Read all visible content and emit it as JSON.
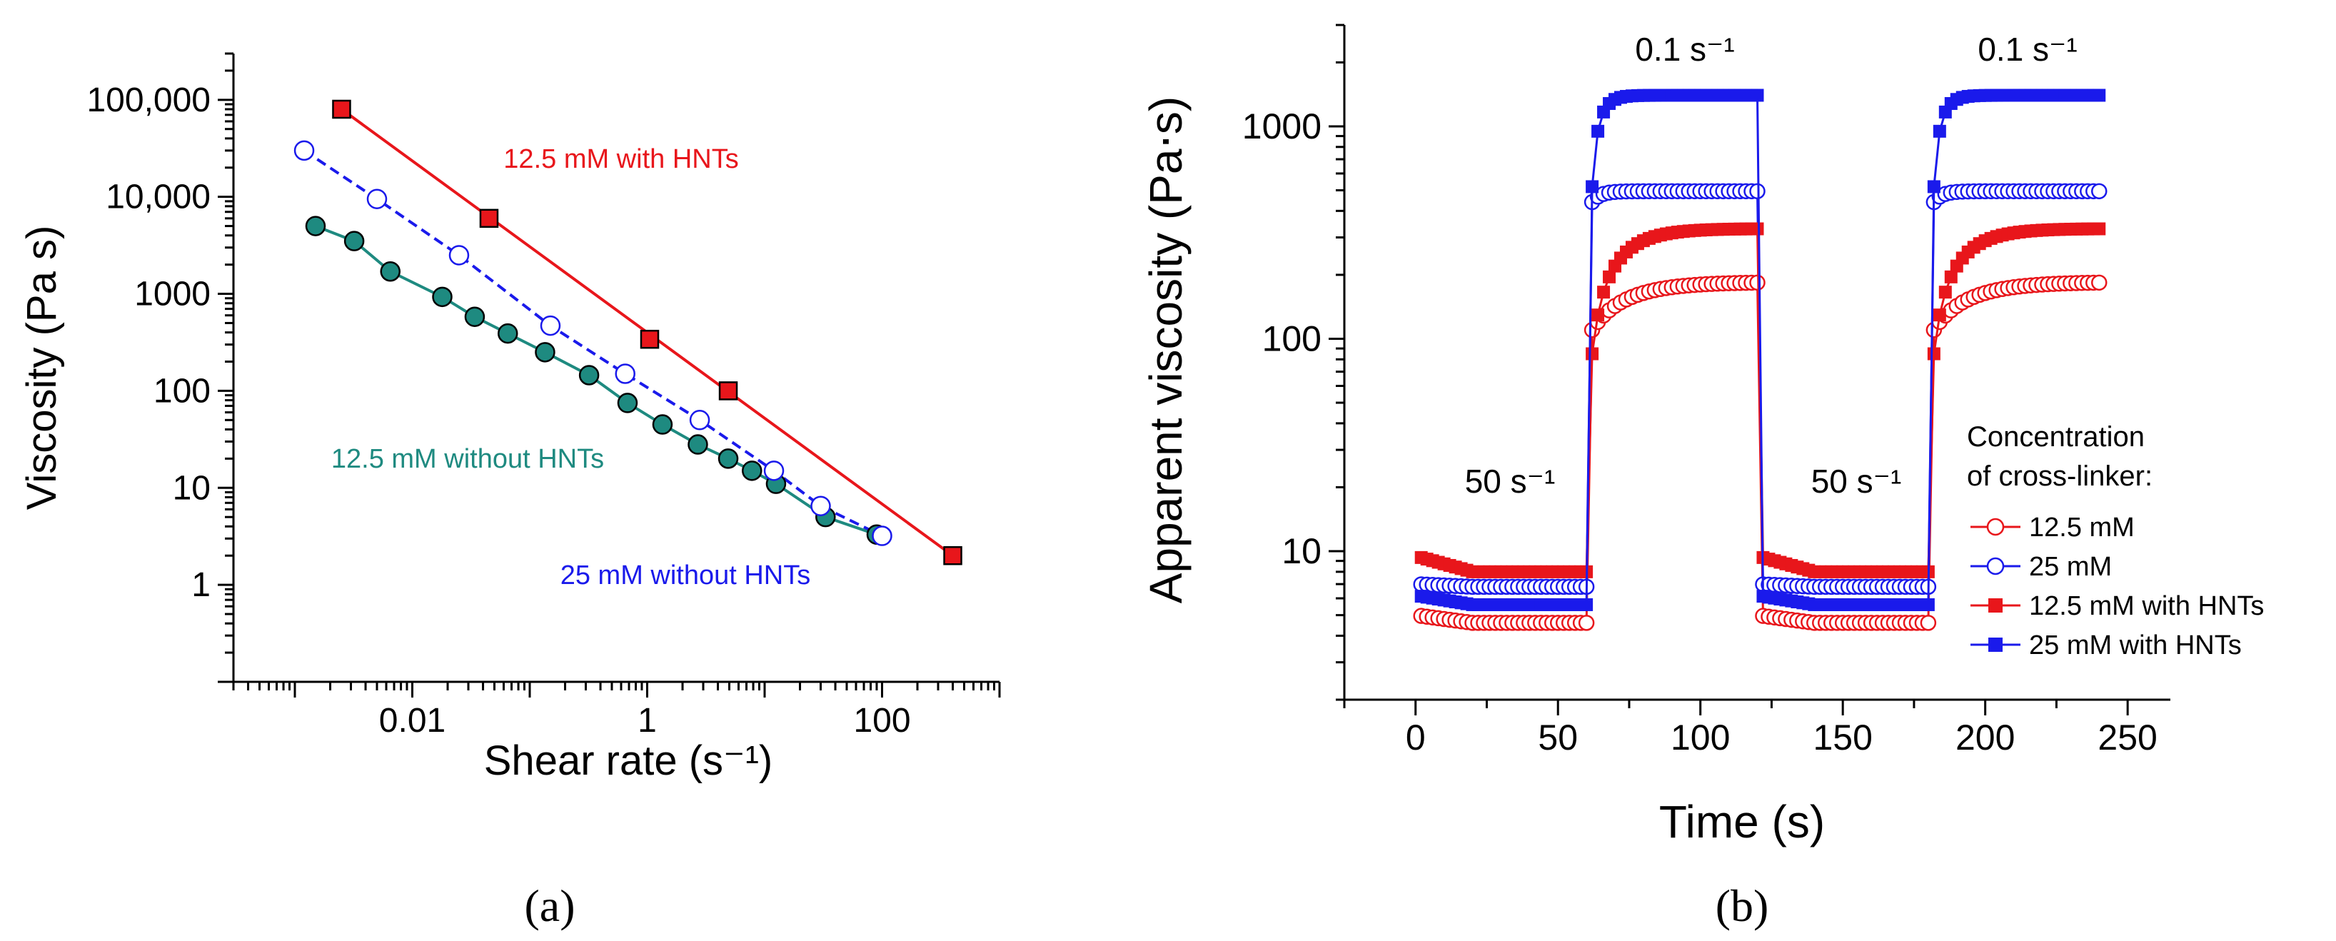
{
  "chart_data": [
    {
      "type": "scatter",
      "panel_label": "a",
      "xlabel": "Shear rate (s⁻¹)",
      "ylabel": "Viscosity (Pa s)",
      "xscale": "log",
      "yscale": "log",
      "xlim": [
        0.0003,
        1000
      ],
      "ylim": [
        0.1,
        300000
      ],
      "x_ticks": [
        0.01,
        1,
        100
      ],
      "x_tick_labels": [
        "0.01",
        "1",
        "100"
      ],
      "y_ticks": [
        1,
        10,
        100,
        1000,
        10000,
        100000
      ],
      "y_tick_labels": [
        "1",
        "10",
        "100",
        "1000",
        "10,000",
        "100,000"
      ],
      "series": [
        {
          "name": "12.5 mM with HNTs",
          "color": "#e8161b",
          "marker": "square",
          "x": [
            0.0025,
            0.045,
            1.05,
            4.9,
            400
          ],
          "y": [
            80000,
            6000,
            340,
            100,
            2
          ]
        },
        {
          "name": "25 mM without HNTs",
          "color": "#1a1aeb",
          "marker": "circle-open",
          "x": [
            0.0012,
            0.005,
            0.025,
            0.15,
            0.65,
            2.8,
            12,
            30,
            100
          ],
          "y": [
            30000,
            9500,
            2500,
            470,
            150,
            50,
            15,
            6.5,
            3.2
          ]
        },
        {
          "name": "12.5 mM without HNTs",
          "color": "#1e8a80",
          "marker": "circle-filled",
          "x": [
            0.0015,
            0.0032,
            0.0065,
            0.018,
            0.034,
            0.065,
            0.135,
            0.32,
            0.68,
            1.35,
            2.7,
            4.9,
            7.8,
            12.5,
            33,
            90
          ],
          "y": [
            5000,
            3500,
            1700,
            930,
            580,
            390,
            250,
            145,
            75,
            45,
            28,
            20,
            15,
            11,
            5,
            3.3
          ]
        }
      ],
      "annotations": [
        "12.5 mM with HNTs",
        "12.5 mM without HNTs",
        "25 mM without HNTs"
      ]
    },
    {
      "type": "scatter",
      "panel_label": "b",
      "xlabel": "Time (s)",
      "ylabel": "Apparent viscosity (Pa⋅s)",
      "yscale": "log",
      "xlim": [
        -25,
        265
      ],
      "ylim": [
        2,
        3000
      ],
      "x_ticks": [
        0,
        50,
        100,
        150,
        200,
        250
      ],
      "x_tick_labels": [
        "0",
        "50",
        "100",
        "150",
        "200",
        "250"
      ],
      "y_ticks": [
        10,
        100,
        1000
      ],
      "y_tick_labels": [
        "10",
        "100",
        "1000"
      ],
      "steps": [
        {
          "t_start": 0,
          "t_end": 60,
          "rate": "50 s⁻¹"
        },
        {
          "t_start": 60,
          "t_end": 120,
          "rate": "0.1 s⁻¹"
        },
        {
          "t_start": 120,
          "t_end": 180,
          "rate": "50 s⁻¹"
        },
        {
          "t_start": 180,
          "t_end": 240,
          "rate": "0.1 s⁻¹"
        }
      ],
      "series": [
        {
          "name": "12.5 mM",
          "color": "#e8161b",
          "marker": "circle-open",
          "low_start": 5.0,
          "low_end": 4.6,
          "high_start": 110,
          "high_end": 185,
          "rise_tau": 14
        },
        {
          "name": "25 mM",
          "color": "#1a1aeb",
          "marker": "circle-open",
          "low_start": 7.0,
          "low_end": 6.8,
          "high_start": 440,
          "high_end": 495,
          "rise_tau": 3
        },
        {
          "name": "12.5 mM with HNTs",
          "color": "#e8161b",
          "marker": "square",
          "low_start": 9.5,
          "low_end": 8.0,
          "high_start": 85,
          "high_end": 330,
          "rise_tau": 10
        },
        {
          "name": "25 mM with HNTs",
          "color": "#1a1aeb",
          "marker": "square",
          "low_start": 6.2,
          "low_end": 5.6,
          "high_start": 520,
          "high_end": 1400,
          "rise_tau": 3
        }
      ],
      "legend_title": [
        "Concentration",
        "of cross-linker:"
      ],
      "legend_position": "bottom-right"
    }
  ],
  "captions": {
    "a": "(a)",
    "b": "(b)"
  },
  "panel_b_step_labels": [
    "50 s⁻¹",
    "0.1 s⁻¹",
    "50 s⁻¹",
    "0.1 s⁻¹"
  ]
}
